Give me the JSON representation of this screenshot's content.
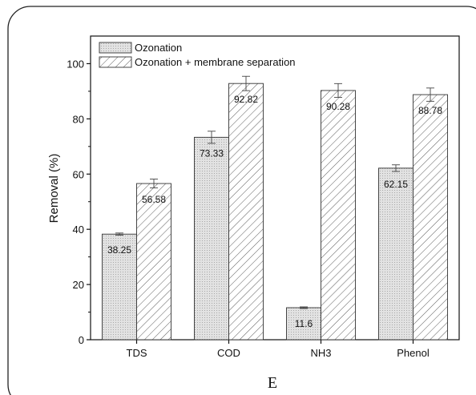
{
  "chart_data": {
    "type": "bar",
    "categories": [
      "TDS",
      "COD",
      "NH3",
      "Phenol"
    ],
    "series": [
      {
        "name": "Ozonation",
        "values": [
          38.25,
          73.33,
          11.6,
          62.15
        ],
        "errors": [
          0.4,
          2.2,
          0.3,
          1.2
        ],
        "labels": [
          "38.25",
          "73.33",
          "11.6",
          "62.15"
        ],
        "pattern": "dots",
        "fill": "#e4e4e4"
      },
      {
        "name": "Ozonation + membrane separation",
        "values": [
          56.58,
          92.82,
          90.28,
          88.78
        ],
        "errors": [
          1.6,
          2.6,
          2.5,
          2.4
        ],
        "labels": [
          "56.58",
          "92.82",
          "90.28",
          "88.78"
        ],
        "pattern": "hatch",
        "fill": "#ffffff"
      }
    ],
    "title": "",
    "xlabel": "",
    "ylabel": "Removal (%)",
    "ylim": [
      0,
      110
    ],
    "yticks": [
      0,
      20,
      40,
      60,
      80,
      100
    ],
    "grid": false,
    "legend": "top-left",
    "panel_label": "E"
  }
}
